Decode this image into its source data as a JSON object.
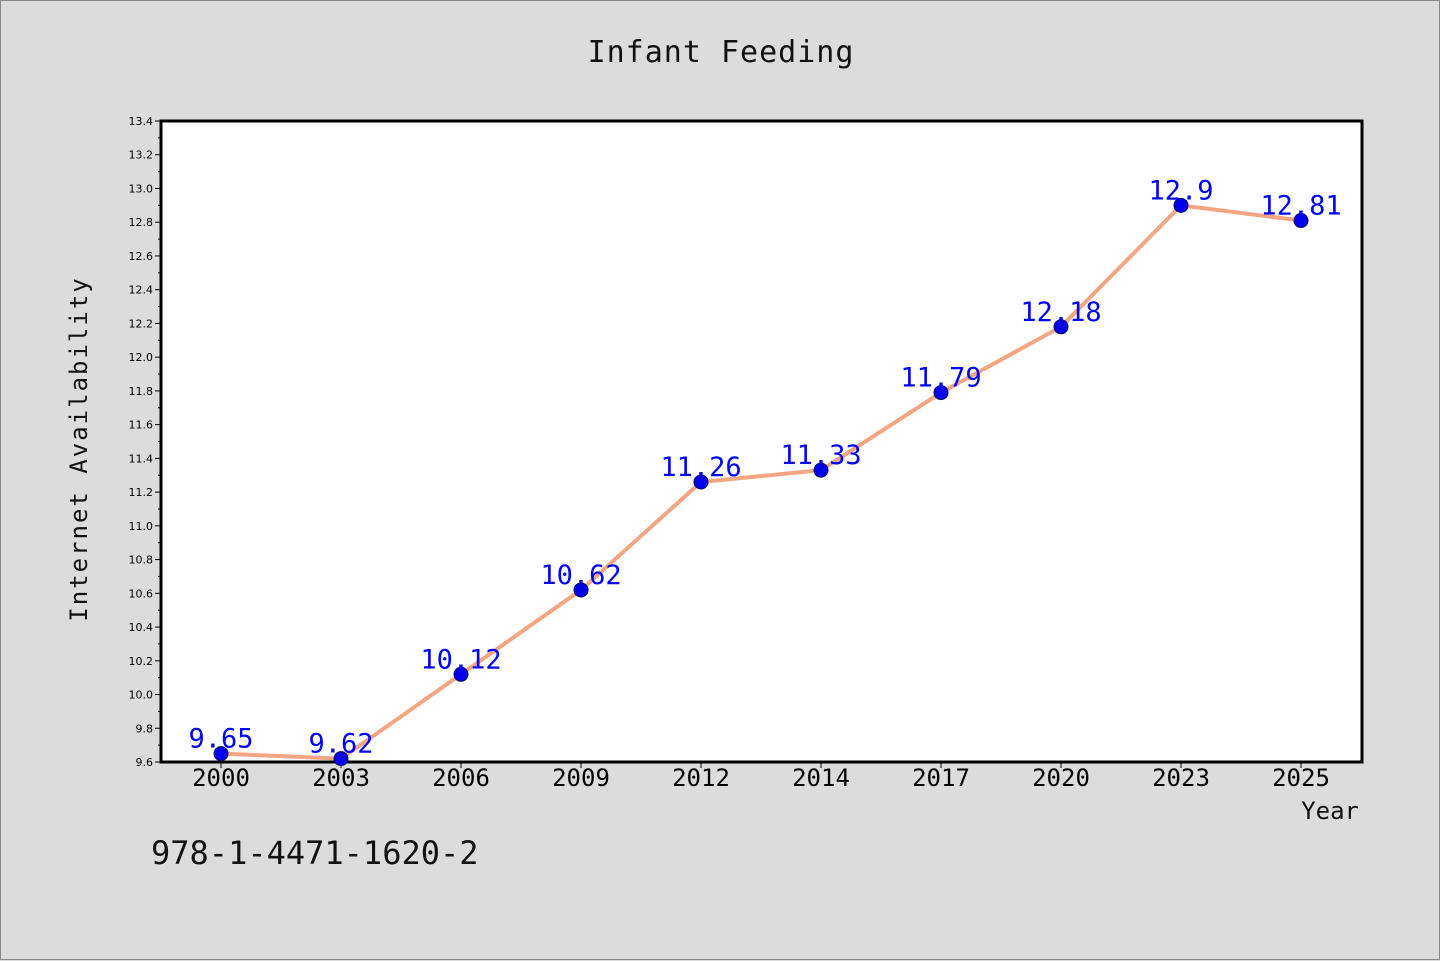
{
  "chart_data": {
    "type": "line",
    "title": "Infant Feeding",
    "xlabel": "Year",
    "ylabel": "Internet Availability",
    "categories": [
      "2000",
      "2003",
      "2006",
      "2009",
      "2012",
      "2014",
      "2017",
      "2020",
      "2023",
      "2025"
    ],
    "values": [
      9.65,
      9.62,
      10.12,
      10.62,
      11.26,
      11.33,
      11.79,
      12.18,
      12.9,
      12.81
    ],
    "data_labels": [
      "9.65",
      "9.62",
      "10.12",
      "10.62",
      "11.26",
      "11.33",
      "11.79",
      "12.18",
      "12.9",
      "12.81"
    ],
    "ylim": [
      9.6,
      13.4
    ],
    "yticks": [
      "9.6",
      "9.8",
      "10.0",
      "10.2",
      "10.4",
      "10.6",
      "10.8",
      "11.0",
      "11.2",
      "11.4",
      "11.6",
      "11.8",
      "12.0",
      "12.2",
      "12.4",
      "12.6",
      "12.8",
      "13.0",
      "13.2",
      "13.4"
    ],
    "grid": false,
    "line_color": "#f4a582",
    "marker_color": "#0000ee",
    "label_color": "#0000ff"
  },
  "annotation": "978-1-4471-1620-2"
}
